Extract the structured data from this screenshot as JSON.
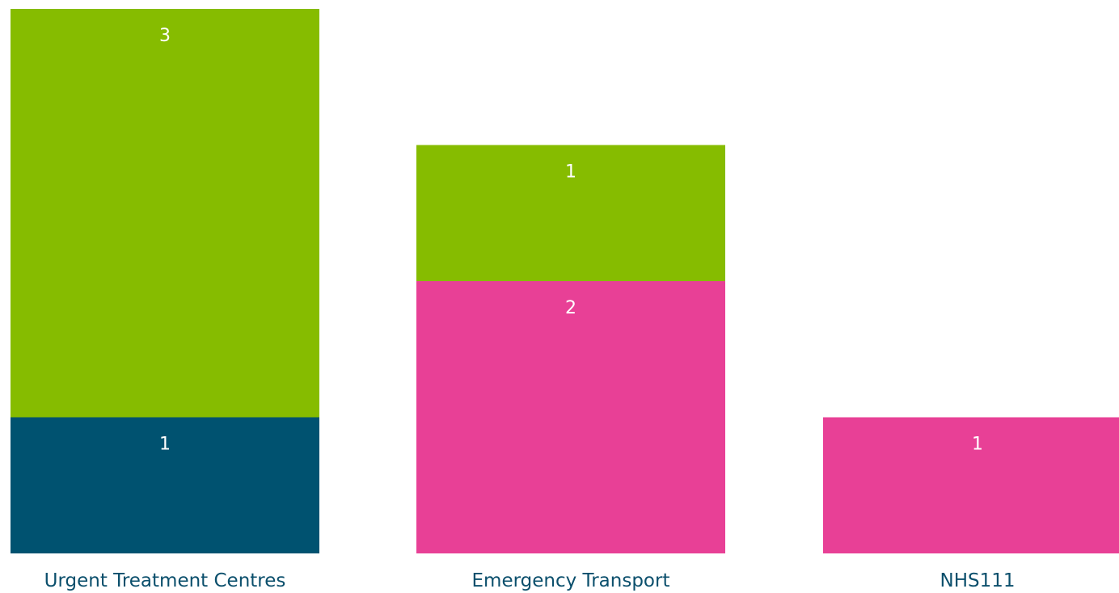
{
  "chart_data": {
    "type": "bar",
    "stacked": true,
    "title": "",
    "xlabel": "",
    "ylabel": "",
    "categories": [
      "Urgent Treatment Centres",
      "Emergency Transport",
      "NHS111"
    ],
    "ylim": [
      0,
      4
    ],
    "grid": false,
    "legend": "none",
    "series": [
      {
        "color": "#005270",
        "values": [
          1,
          0,
          0
        ]
      },
      {
        "color": "#e84096",
        "values": [
          0,
          2,
          1
        ]
      },
      {
        "color": "#86bc00",
        "values": [
          3,
          1,
          0
        ]
      }
    ]
  }
}
